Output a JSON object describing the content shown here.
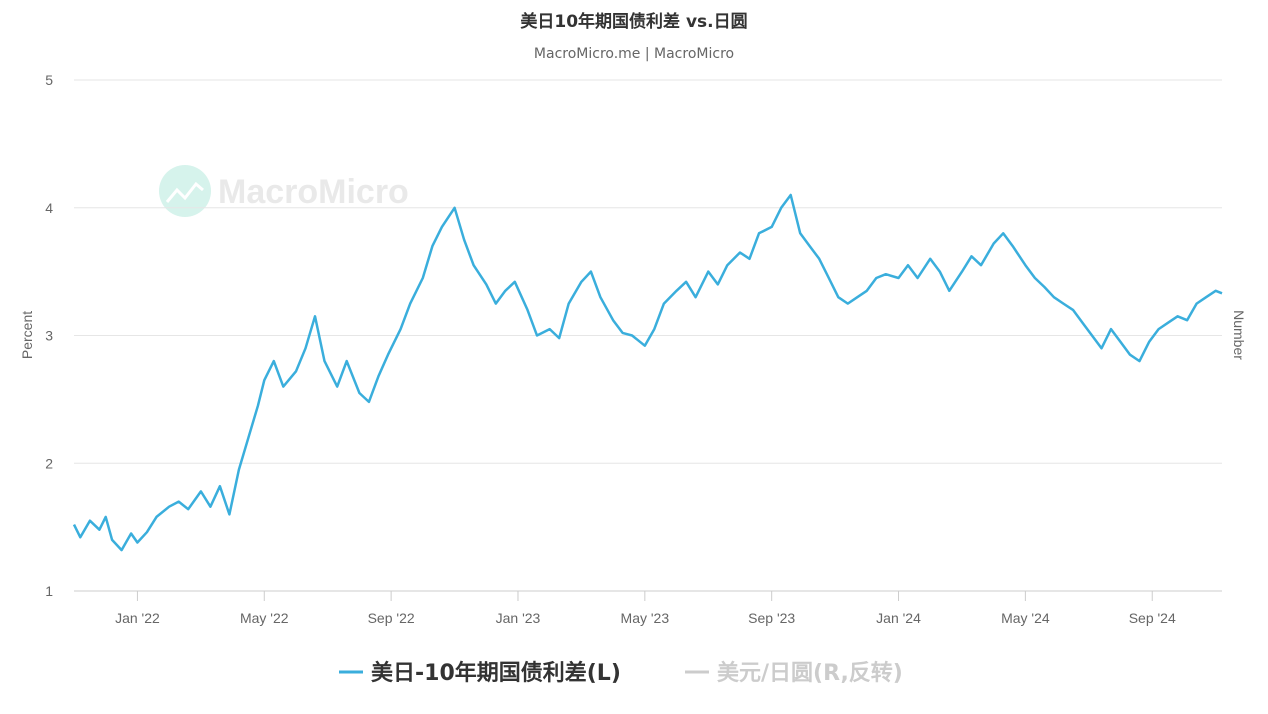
{
  "chart_data": {
    "type": "line",
    "title": "美日10年期国债利差 vs.日圆",
    "subtitle": "MacroMicro.me | MacroMicro",
    "watermark": "MacroMicro",
    "left_axis": {
      "label": "Percent",
      "ticks": [
        "1",
        "2",
        "3",
        "4",
        "5"
      ],
      "ylim": [
        1,
        5
      ]
    },
    "right_axis": {
      "label": "Number"
    },
    "x_ticks": [
      "Jan '22",
      "May '22",
      "Sep '22",
      "Jan '23",
      "May '23",
      "Sep '23",
      "Jan '24",
      "May '24",
      "Sep '24"
    ],
    "x_tick_positions": [
      0,
      4,
      8,
      12,
      16,
      20,
      24,
      28,
      32
    ],
    "xlim": [
      -2.0,
      34.2
    ],
    "grid": true,
    "legend_position": "bottom-center",
    "colors": {
      "series1": "#3aaedc",
      "series2_inactive": "#cccccc"
    },
    "series": [
      {
        "name": "美日-10年期国债利差(L)",
        "visible": true,
        "x": [
          -2.0,
          -1.8,
          -1.5,
          -1.2,
          -1.0,
          -0.8,
          -0.5,
          -0.2,
          0.0,
          0.3,
          0.6,
          1.0,
          1.3,
          1.6,
          2.0,
          2.3,
          2.6,
          2.9,
          3.2,
          3.5,
          3.8,
          4.0,
          4.3,
          4.6,
          5.0,
          5.3,
          5.6,
          5.9,
          6.3,
          6.6,
          7.0,
          7.3,
          7.6,
          7.9,
          8.3,
          8.6,
          9.0,
          9.3,
          9.6,
          10.0,
          10.3,
          10.6,
          11.0,
          11.3,
          11.6,
          11.9,
          12.3,
          12.6,
          13.0,
          13.3,
          13.6,
          14.0,
          14.3,
          14.6,
          15.0,
          15.3,
          15.6,
          16.0,
          16.3,
          16.6,
          17.0,
          17.3,
          17.6,
          18.0,
          18.3,
          18.6,
          19.0,
          19.3,
          19.6,
          20.0,
          20.3,
          20.6,
          20.9,
          21.2,
          21.5,
          21.8,
          22.1,
          22.4,
          22.7,
          23.0,
          23.3,
          23.6,
          24.0,
          24.3,
          24.6,
          25.0,
          25.3,
          25.6,
          26.0,
          26.3,
          26.6,
          27.0,
          27.3,
          27.6,
          28.0,
          28.3,
          28.6,
          28.9,
          29.2,
          29.5,
          29.8,
          30.1,
          30.4,
          30.7,
          31.0,
          31.3,
          31.6,
          31.9,
          32.2,
          32.5,
          32.8,
          33.1,
          33.4,
          33.7,
          34.0,
          34.2
        ],
        "values": [
          1.52,
          1.42,
          1.55,
          1.48,
          1.58,
          1.4,
          1.32,
          1.45,
          1.38,
          1.46,
          1.58,
          1.66,
          1.7,
          1.64,
          1.78,
          1.66,
          1.82,
          1.6,
          1.95,
          2.2,
          2.45,
          2.65,
          2.8,
          2.6,
          2.72,
          2.9,
          3.15,
          2.8,
          2.6,
          2.8,
          2.55,
          2.48,
          2.68,
          2.85,
          3.05,
          3.25,
          3.45,
          3.7,
          3.85,
          4.0,
          3.75,
          3.55,
          3.4,
          3.25,
          3.35,
          3.42,
          3.2,
          3.0,
          3.05,
          2.98,
          3.25,
          3.42,
          3.5,
          3.3,
          3.12,
          3.02,
          3.0,
          2.92,
          3.05,
          3.25,
          3.35,
          3.42,
          3.3,
          3.5,
          3.4,
          3.55,
          3.65,
          3.6,
          3.8,
          3.85,
          4.0,
          4.1,
          3.8,
          3.7,
          3.6,
          3.45,
          3.3,
          3.25,
          3.3,
          3.35,
          3.45,
          3.48,
          3.45,
          3.55,
          3.45,
          3.6,
          3.5,
          3.35,
          3.5,
          3.62,
          3.55,
          3.72,
          3.8,
          3.7,
          3.55,
          3.45,
          3.38,
          3.3,
          3.25,
          3.2,
          3.1,
          3.0,
          2.9,
          3.05,
          2.95,
          2.85,
          2.8,
          2.95,
          3.05,
          3.1,
          3.15,
          3.12,
          3.25,
          3.3,
          3.35,
          3.33
        ]
      },
      {
        "name": "美元/日圆(R,反转)",
        "visible": false,
        "values": []
      }
    ]
  }
}
